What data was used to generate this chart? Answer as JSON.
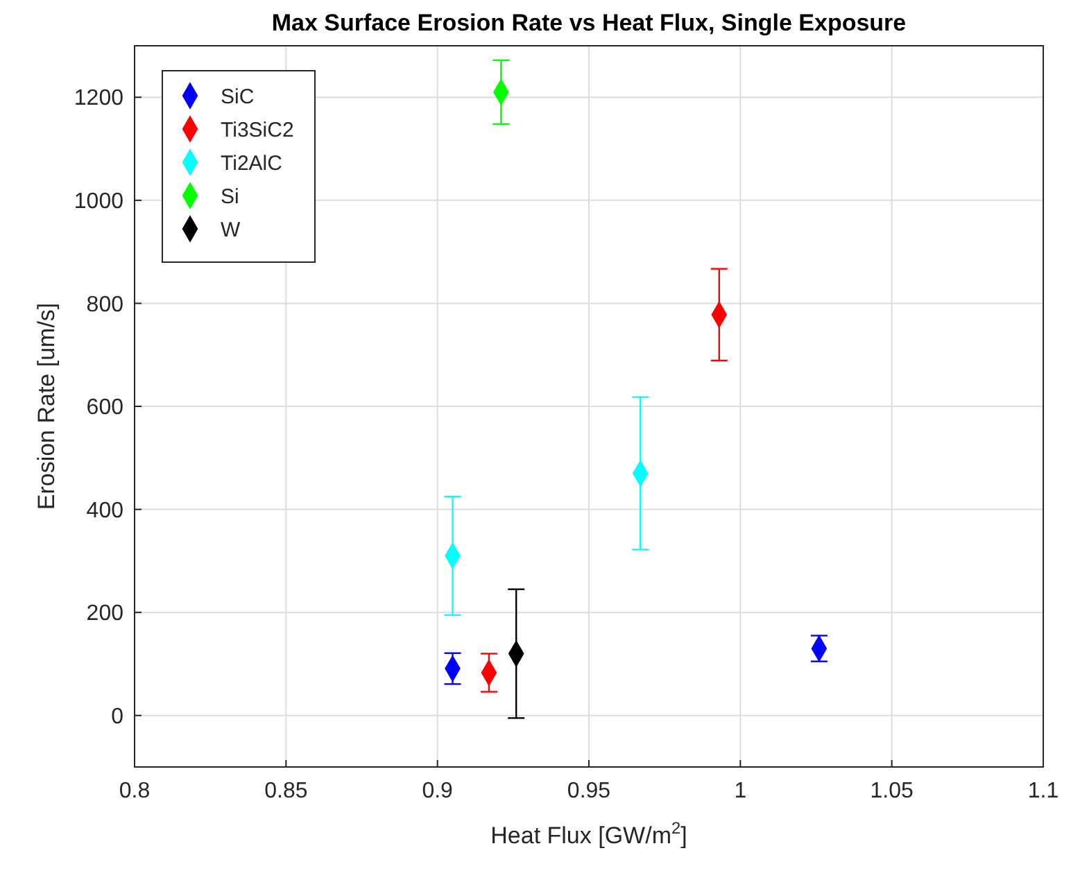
{
  "chart_data": {
    "type": "scatter",
    "title": "Max Surface Erosion Rate vs Heat Flux, Single Exposure",
    "xlabel": "Heat Flux [GW/m$^{2}$]",
    "ylabel": "Erosion Rate [um/s]",
    "xlim": [
      0.8,
      1.1
    ],
    "xticks": [
      0.8,
      0.85,
      0.9,
      0.95,
      1,
      1.05,
      1.1
    ],
    "ylim": [
      -100,
      1300
    ],
    "yticks": [
      0,
      200,
      400,
      600,
      800,
      1000,
      1200
    ],
    "grid": true,
    "legend": "top left",
    "marker": "diamond",
    "series": [
      {
        "name": "SiC",
        "color": "#0000ff",
        "x": [
          0.905,
          1.026
        ],
        "values": [
          91,
          130
        ],
        "errors": [
          30,
          25
        ]
      },
      {
        "name": "Ti3SiC2",
        "color": "#ff0000",
        "x": [
          0.917,
          0.993
        ],
        "values": [
          83,
          778
        ],
        "errors": [
          37,
          89
        ]
      },
      {
        "name": "Ti2AlC",
        "color": "#00ffff",
        "x": [
          0.905,
          0.967
        ],
        "values": [
          310,
          470
        ],
        "errors": [
          115,
          148
        ]
      },
      {
        "name": "Si",
        "color": "#00ff00",
        "x": [
          0.921
        ],
        "values": [
          1210
        ],
        "errors": [
          62
        ]
      },
      {
        "name": "W",
        "color": "#000000",
        "x": [
          0.926
        ],
        "values": [
          120
        ],
        "errors": [
          125
        ]
      }
    ]
  }
}
